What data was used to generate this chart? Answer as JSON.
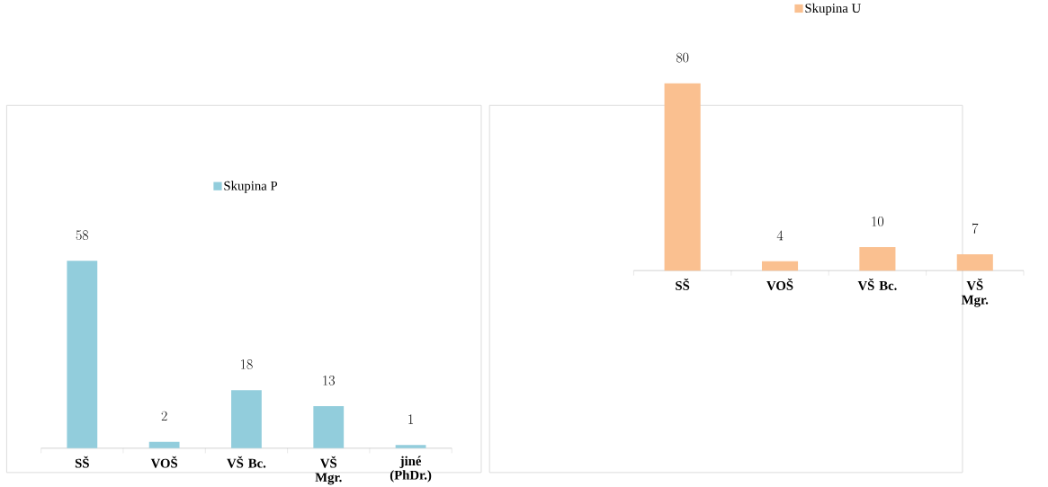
{
  "chart_data": [
    {
      "type": "bar",
      "categories": [
        "SŠ",
        "VOŠ",
        "VŠ Bc.",
        "VŠ Mgr.",
        "jiné (PhDr.)"
      ],
      "series": [
        {
          "name": "Skupina P",
          "color": "#92cddc",
          "values": [
            58,
            2,
            18,
            13,
            1
          ]
        }
      ],
      "data_labels": true,
      "legend": "top"
    },
    {
      "type": "bar",
      "categories": [
        "SŠ",
        "VOŠ",
        "VŠ Bc.",
        "VŠ Mgr."
      ],
      "series": [
        {
          "name": "Skupina U",
          "color": "#fac090",
          "values": [
            80,
            4,
            10,
            7
          ]
        }
      ],
      "data_labels": true,
      "legend": "top"
    }
  ]
}
